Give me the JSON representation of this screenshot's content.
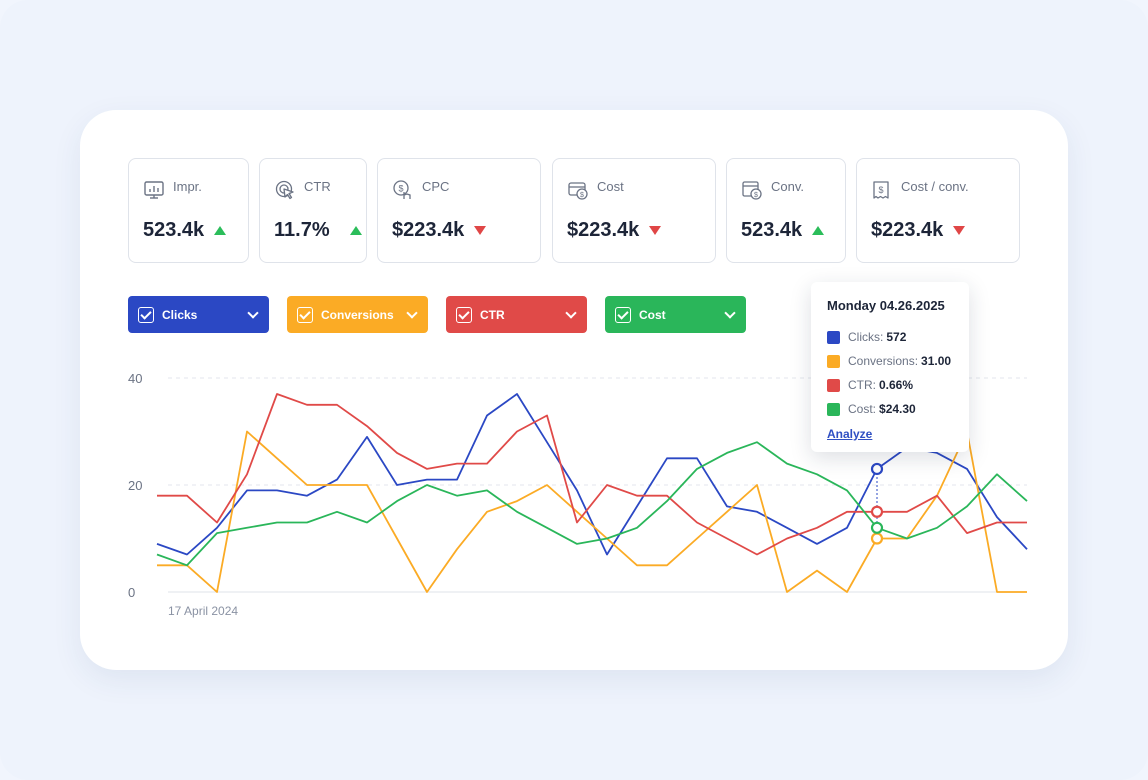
{
  "metrics": [
    {
      "label": "Impr.",
      "value": "523.4k",
      "trend": "up",
      "icon": "monitor-chart-icon"
    },
    {
      "label": "CTR",
      "value": "11.7%",
      "trend": "up",
      "icon": "cursor-click-icon"
    },
    {
      "label": "CPC",
      "value": "$223.4k",
      "trend": "down",
      "icon": "dollar-hand-icon"
    },
    {
      "label": "Cost",
      "value": "$223.4k",
      "trend": "down",
      "icon": "wallet-dollar-icon"
    },
    {
      "label": "Conv.",
      "value": "523.4k",
      "trend": "up",
      "icon": "calendar-dollar-icon"
    },
    {
      "label": "Cost / conv.",
      "value": "$223.4k",
      "trend": "down",
      "icon": "receipt-dollar-icon"
    }
  ],
  "filters": [
    {
      "label": "Clicks",
      "color": "#2b48c4"
    },
    {
      "label": "Conversions",
      "color": "#fbab25"
    },
    {
      "label": "CTR",
      "color": "#e04a48"
    },
    {
      "label": "Cost",
      "color": "#2ab65a"
    }
  ],
  "tooltip": {
    "date": "Monday 04.26.2025",
    "rows": [
      {
        "label": "Clicks:",
        "value": "572",
        "color": "#2b48c4"
      },
      {
        "label": "Conversions:",
        "value": "31.00",
        "color": "#fbab25"
      },
      {
        "label": "CTR:",
        "value": "0.66%",
        "color": "#e04a48"
      },
      {
        "label": "Cost:",
        "value": "$24.30",
        "color": "#2ab65a"
      }
    ],
    "link": "Analyze"
  },
  "chart_data": {
    "type": "line",
    "x_start_label": "17 April 2024",
    "y_ticks": [
      "0",
      "20",
      "40"
    ],
    "ylim": [
      0,
      40
    ],
    "grid": "dashed horizontal",
    "series": [
      {
        "name": "Clicks",
        "color": "#2b48c4",
        "values": [
          9,
          7,
          12,
          19,
          19,
          18,
          21,
          29,
          20,
          21,
          21,
          33,
          37,
          28,
          19,
          7,
          16,
          25,
          25,
          16,
          15,
          12,
          9,
          12,
          23,
          27,
          26,
          23,
          14,
          8
        ]
      },
      {
        "name": "Conversions",
        "color": "#fbab25",
        "values": [
          5,
          5,
          0,
          30,
          25,
          20,
          20,
          20,
          10,
          0,
          8,
          15,
          17,
          20,
          15,
          10,
          5,
          5,
          10,
          15,
          20,
          0,
          4,
          0,
          10,
          10,
          18,
          30,
          0,
          0
        ]
      },
      {
        "name": "CTR",
        "color": "#e04a48",
        "values": [
          18,
          18,
          13,
          22,
          37,
          35,
          35,
          31,
          26,
          23,
          24,
          24,
          30,
          33,
          13,
          20,
          18,
          18,
          13,
          10,
          7,
          10,
          12,
          15,
          15,
          15,
          18,
          11,
          13,
          13
        ]
      },
      {
        "name": "Cost",
        "color": "#2ab65a",
        "values": [
          7,
          5,
          11,
          12,
          13,
          13,
          15,
          13,
          17,
          20,
          18,
          19,
          15,
          12,
          9,
          10,
          12,
          17,
          23,
          26,
          28,
          24,
          22,
          19,
          12,
          10,
          12,
          16,
          22,
          17
        ]
      }
    ],
    "highlight_index": 24
  }
}
